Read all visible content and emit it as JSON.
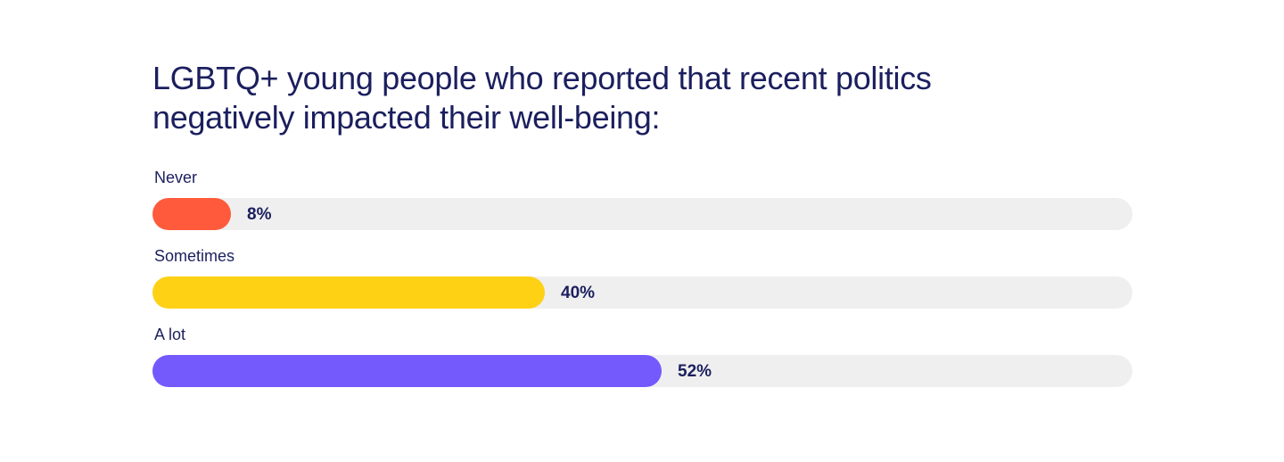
{
  "chart_data": {
    "type": "bar",
    "orientation": "horizontal",
    "title": "LGBTQ+ young people who reported that recent politics negatively impacted their well-being:",
    "categories": [
      "Never",
      "Sometimes",
      "A lot"
    ],
    "values": [
      8,
      40,
      52
    ],
    "value_labels": [
      "8%",
      "40%",
      "52%"
    ],
    "colors": [
      "#ff5a3c",
      "#ffd115",
      "#7459fd"
    ],
    "track_color": "#efefef",
    "xlim": [
      0,
      100
    ],
    "grid": false,
    "legend": "none"
  }
}
